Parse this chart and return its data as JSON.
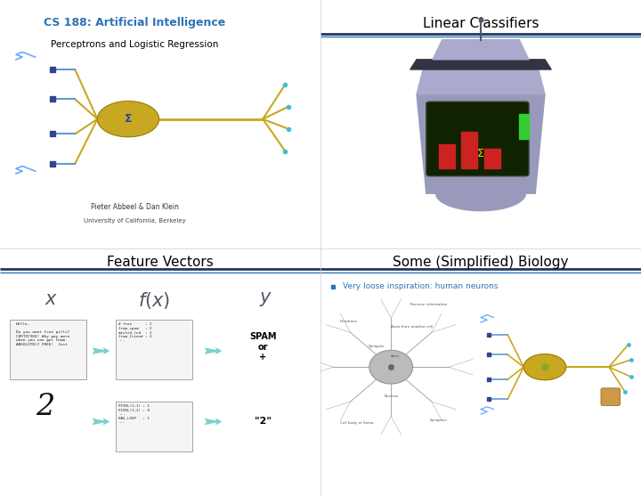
{
  "bg_color": "#ffffff",
  "divider_color_top": "#1f3864",
  "divider_color_bottom": "#2e74b5",
  "slide1": {
    "title": "CS 188: Artificial Intelligence",
    "title_color": "#2e74b5",
    "subtitle": "Perceptrons and Logistic Regression",
    "subtitle_color": "#000000",
    "author": "Pieter Abbeel & Dan Klein",
    "institution": "University of California, Berkeley"
  },
  "slide2": {
    "title": "Linear Classifiers",
    "title_color": "#000000"
  },
  "slide3": {
    "title": "Feature Vectors",
    "title_color": "#000000",
    "spam_label": "SPAM\nor\n+",
    "digit_label": "\"2\"",
    "email_text": "Hello,\n\nDo you want free pills?\nCERTIFIED! Why pay more\nwhen you can get them\nABSOLUTELY FREE!  Just",
    "feature_text1": "# free      : 2\nfrom_spam   : 2\nmisled_led  : 2\nfrom_friend : 2\n...",
    "feature_text2": "PIXEL(1,1) : 1\nPIXEL(1,2) : 0\n...\nHAS_LOOP   : 1\n..."
  },
  "slide4": {
    "title": "Some (Simplified) Biology",
    "title_color": "#000000",
    "bullet_color": "#2e74b5",
    "bullet_text": "Very loose inspiration: human neurons"
  },
  "arrow_color": "#7ecfcf",
  "box_color": "#d0eaea"
}
